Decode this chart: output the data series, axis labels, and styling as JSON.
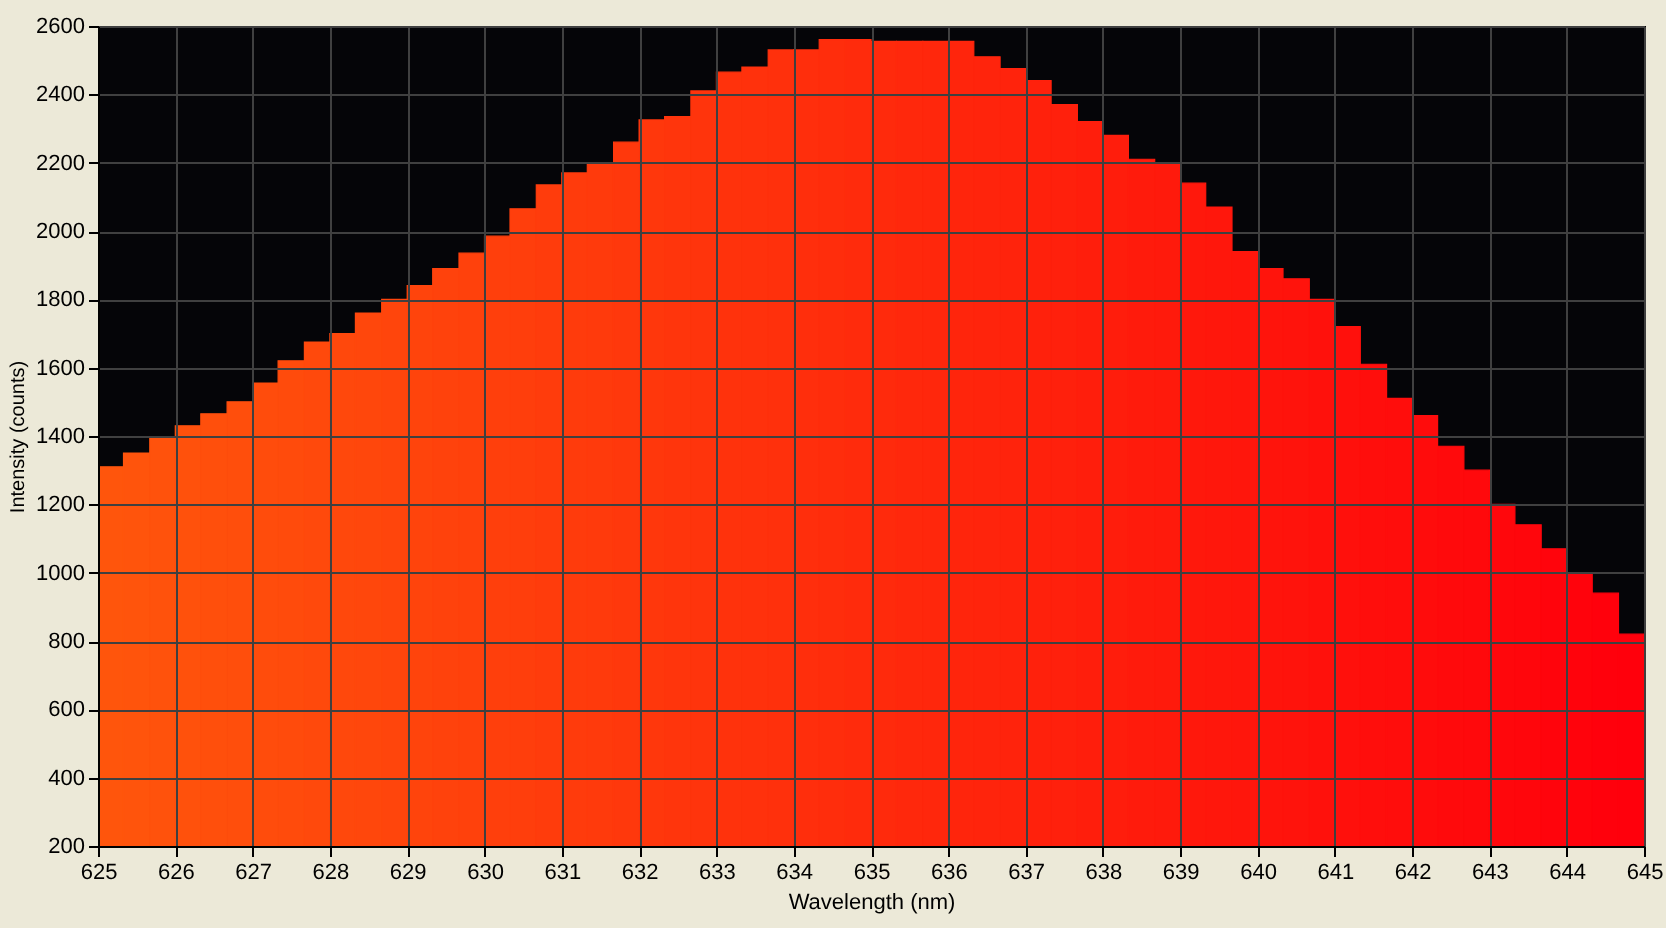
{
  "chart_data": {
    "type": "histogram",
    "xlabel": "Wavelength (nm)",
    "ylabel": "Intensity (counts)",
    "bins": [
      625,
      625.33,
      625.67,
      626,
      626.33,
      626.67,
      627,
      627.33,
      627.67,
      628,
      628.33,
      628.67,
      629,
      629.33,
      629.67,
      630,
      630.33,
      630.67,
      631,
      631.33,
      631.67,
      632,
      632.33,
      632.67,
      633,
      633.33,
      633.67,
      634,
      634.33,
      634.67,
      635,
      635.33,
      635.67,
      636,
      636.33,
      636.67,
      637,
      637.33,
      637.67,
      638,
      638.33,
      638.67,
      639,
      639.33,
      639.67,
      640,
      640.33,
      640.67,
      641,
      641.33,
      641.67,
      642,
      642.33,
      642.67,
      643,
      643.33,
      643.67,
      644,
      644.33,
      644.67,
      645
    ],
    "values": [
      1310,
      1350,
      1395,
      1430,
      1465,
      1500,
      1555,
      1620,
      1675,
      1700,
      1760,
      1800,
      1840,
      1890,
      1935,
      1985,
      2065,
      2135,
      2170,
      2195,
      2260,
      2325,
      2335,
      2410,
      2465,
      2480,
      2530,
      2530,
      2560,
      2560,
      2555,
      2555,
      2555,
      2555,
      2510,
      2475,
      2440,
      2370,
      2320,
      2280,
      2210,
      2200,
      2140,
      2070,
      1940,
      1890,
      1860,
      1800,
      1720,
      1610,
      1510,
      1460,
      1370,
      1300,
      1200,
      1140,
      1070,
      1000,
      940,
      820
    ],
    "colors": [
      "#ff550c",
      "#ff540c",
      "#ff520c",
      "#ff510c",
      "#ff4f0c",
      "#ff4e0c",
      "#ff4c0c",
      "#ff4b0c",
      "#ff490c",
      "#ff480c",
      "#ff470c",
      "#ff450c",
      "#ff440c",
      "#ff420c",
      "#ff410c",
      "#ff3f0c",
      "#ff3e0c",
      "#ff3c0c",
      "#ff3b0c",
      "#ff3a0c",
      "#ff380c",
      "#ff370c",
      "#ff350c",
      "#ff340c",
      "#ff320c",
      "#ff310c",
      "#ff300c",
      "#ff2e0c",
      "#ff2d0c",
      "#ff2b0c",
      "#ff2a0c",
      "#ff280c",
      "#ff270c",
      "#ff250c",
      "#ff240c",
      "#ff230c",
      "#ff210c",
      "#ff200c",
      "#ff1e0c",
      "#ff1d0c",
      "#ff1b0c",
      "#ff1a0c",
      "#ff180c",
      "#ff170c",
      "#ff160c",
      "#ff140c",
      "#ff130c",
      "#ff110c",
      "#ff100c",
      "#ff0e0c",
      "#ff0d0c",
      "#ff0c0c",
      "#ff0a0c",
      "#ff090c",
      "#ff070c",
      "#ff060c",
      "#ff040c",
      "#ff030c",
      "#ff010c",
      "#ff000c"
    ],
    "xlim": [
      625,
      645
    ],
    "xticks": [
      625,
      626,
      627,
      628,
      629,
      630,
      631,
      632,
      633,
      634,
      635,
      636,
      637,
      638,
      639,
      640,
      641,
      642,
      643,
      644,
      645
    ],
    "ylim": [
      200,
      2600
    ],
    "yticks": [
      200,
      400,
      600,
      800,
      1000,
      1200,
      1400,
      1600,
      1800,
      2000,
      2200,
      2400,
      2600
    ],
    "grid": true
  }
}
